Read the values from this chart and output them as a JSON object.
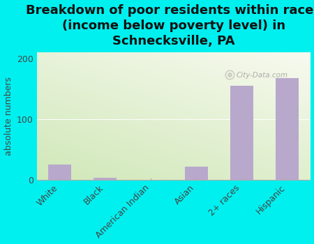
{
  "title": "Breakdown of poor residents within races\n(income below poverty level) in\nSchnecksville, PA",
  "categories": [
    "White",
    "Black",
    "American Indian",
    "Asian",
    "2+ races",
    "Hispanic"
  ],
  "values": [
    25,
    4,
    0,
    22,
    155,
    168
  ],
  "bar_color": "#b8a8cc",
  "background_color": "#00f0f0",
  "grad_color_top_left": "#d0e8b8",
  "grad_color_bottom_right": "#f8faf0",
  "ylabel": "absolute numbers",
  "ylim": [
    0,
    210
  ],
  "yticks": [
    0,
    100,
    200
  ],
  "watermark": "City-Data.com",
  "title_fontsize": 13,
  "label_fontsize": 9,
  "tick_fontsize": 9
}
